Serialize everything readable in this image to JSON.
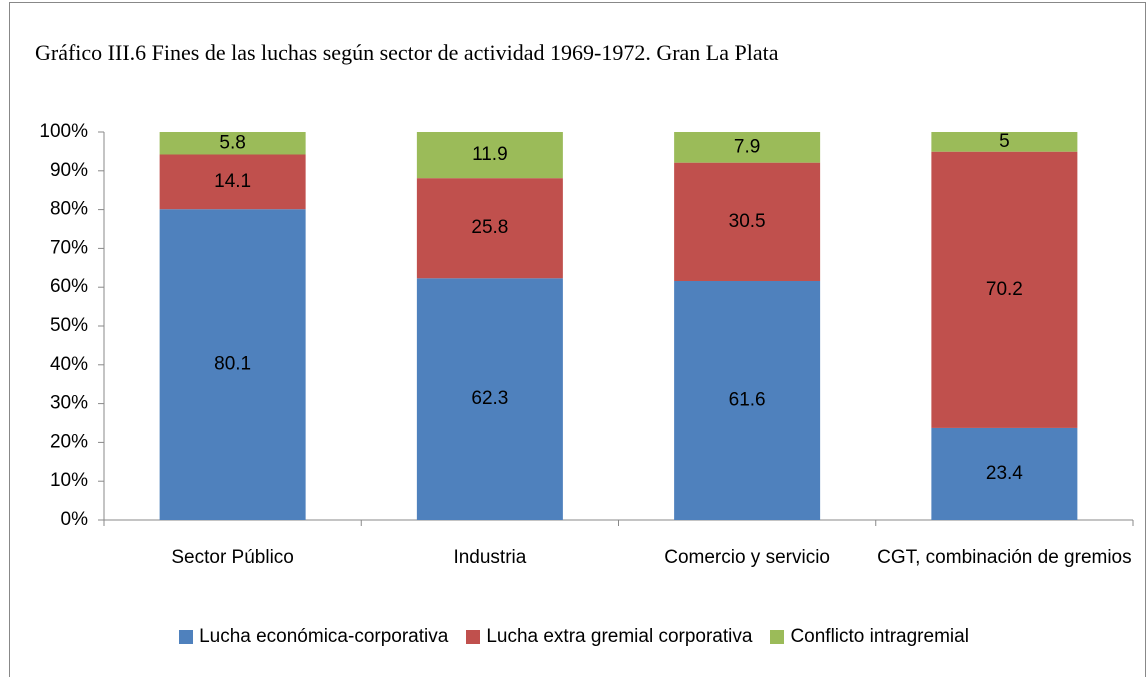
{
  "chart_data": {
    "type": "bar",
    "stacking": "percent",
    "title": "Gráfico III.6 Fines de las luchas según sector de actividad 1969-1972. Gran La Plata",
    "categories": [
      "Sector Público",
      "Industria",
      "Comercio y servicio",
      "CGT, combinación de gremios"
    ],
    "series": [
      {
        "name": "Lucha económica-corporativa",
        "color": "#4f81bd",
        "values": [
          80.1,
          62.3,
          61.6,
          23.4
        ]
      },
      {
        "name": "Lucha extra gremial corporativa",
        "color": "#c0504d",
        "values": [
          14.1,
          25.8,
          30.5,
          70.2
        ]
      },
      {
        "name": "Conflicto intragremial",
        "color": "#9bbb59",
        "values": [
          5.8,
          11.9,
          7.9,
          5
        ]
      }
    ],
    "ylim": [
      0,
      100
    ],
    "yticks": [
      {
        "value": 0,
        "label": "0%"
      },
      {
        "value": 10,
        "label": "10%"
      },
      {
        "value": 20,
        "label": "20%"
      },
      {
        "value": 30,
        "label": "30%"
      },
      {
        "value": 40,
        "label": "40%"
      },
      {
        "value": 50,
        "label": "50%"
      },
      {
        "value": 60,
        "label": "60%"
      },
      {
        "value": 70,
        "label": "70%"
      },
      {
        "value": 80,
        "label": "80%"
      },
      {
        "value": 90,
        "label": "90%"
      },
      {
        "value": 100,
        "label": "100%"
      }
    ],
    "legend": "bottom",
    "grid": false
  }
}
